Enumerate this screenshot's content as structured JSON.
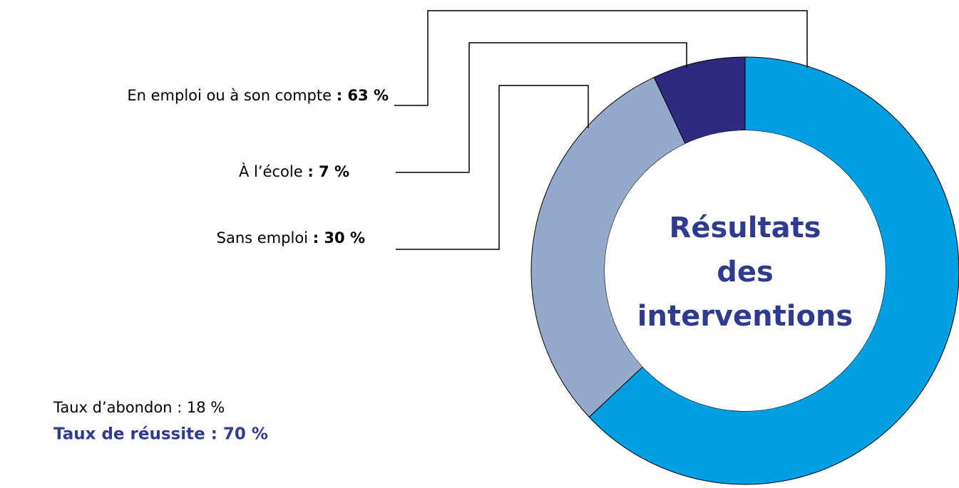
{
  "chart_data": {
    "type": "donut",
    "categories": [
      "En emploi ou à son compte",
      "Sans emploi",
      "À l’école"
    ],
    "values": [
      63,
      30,
      7
    ],
    "value_labels": [
      ": 63 %",
      ": 30 %",
      ": 7 %"
    ],
    "colors": [
      "#009fe3",
      "#95a9cb",
      "#2e2a80"
    ],
    "center_label": [
      "Résultats",
      "des",
      "interventions"
    ],
    "annotations": [
      "Taux d’abondon : 18 %",
      "Taux de réussite : 70 %"
    ]
  }
}
